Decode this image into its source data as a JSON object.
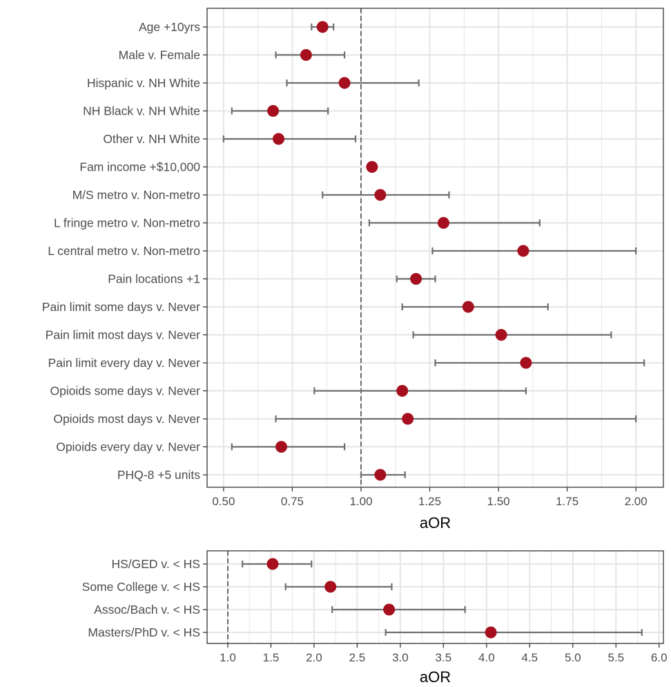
{
  "colors": {
    "point": "#a50f1e",
    "errorbar": "#6e6e6e",
    "grid": "#e5e5e5",
    "frame": "#333333",
    "text": "#4d4d4d",
    "title": "#000000"
  },
  "chart_data": [
    {
      "type": "scatter",
      "subtype": "forest-plot",
      "xlabel": "aOR",
      "ylabel": "",
      "xlim": [
        0.44,
        2.1
      ],
      "xticks": [
        "0.50",
        "0.75",
        "1.00",
        "1.25",
        "1.50",
        "1.75",
        "2.00"
      ],
      "reference_line": 1.0,
      "grid": true,
      "categories": [
        "Age +10yrs",
        "Male v. Female",
        "Hispanic v. NH White",
        "NH Black v. NH White",
        "Other v. NH White",
        "Fam income +$10,000",
        "M/S metro v. Non-metro",
        "L fringe metro v. Non-metro",
        "L central metro v. Non-metro",
        "Pain locations +1",
        "Pain limit some days v. Never",
        "Pain limit most days v. Never",
        "Pain limit every day v. Never",
        "Opioids some days v. Never",
        "Opioids most days v. Never",
        "Opioids every day v. Never",
        "PHQ-8 +5 units"
      ],
      "estimate": [
        0.86,
        0.8,
        0.94,
        0.68,
        0.7,
        1.04,
        1.07,
        1.3,
        1.59,
        1.2,
        1.39,
        1.51,
        1.6,
        1.15,
        1.17,
        0.71,
        1.07
      ],
      "ci_low": [
        0.82,
        0.69,
        0.73,
        0.53,
        0.5,
        1.03,
        0.86,
        1.03,
        1.26,
        1.13,
        1.15,
        1.19,
        1.27,
        0.83,
        0.69,
        0.53,
        1.0
      ],
      "ci_high": [
        0.9,
        0.94,
        1.21,
        0.88,
        0.98,
        1.05,
        1.32,
        1.65,
        2.0,
        1.27,
        1.68,
        1.91,
        2.03,
        1.6,
        2.0,
        0.94,
        1.16
      ]
    },
    {
      "type": "scatter",
      "subtype": "forest-plot",
      "xlabel": "aOR",
      "ylabel": "",
      "xlim": [
        0.76,
        6.05
      ],
      "xticks": [
        "1.0",
        "1.5",
        "2.0",
        "2.5",
        "3.0",
        "3.5",
        "4.0",
        "4.5",
        "5.0",
        "5.5",
        "6.0"
      ],
      "reference_line": 1.0,
      "grid": true,
      "categories": [
        "HS/GED v. < HS",
        "Some College v. < HS",
        "Assoc/Bach v. < HS",
        "Masters/PhD v. < HS"
      ],
      "estimate": [
        1.52,
        2.19,
        2.87,
        4.05
      ],
      "ci_low": [
        1.17,
        1.67,
        2.21,
        2.83
      ],
      "ci_high": [
        1.97,
        2.9,
        3.75,
        5.8
      ]
    }
  ]
}
